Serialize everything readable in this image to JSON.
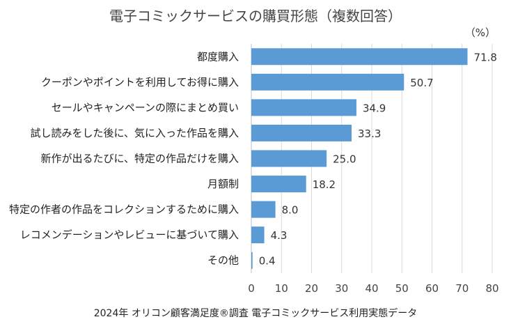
{
  "chart_data": {
    "type": "bar",
    "orientation": "horizontal",
    "title": "電子コミックサービスの購買形態（複数回答）",
    "unit": "（%）",
    "categories": [
      "都度購入",
      "クーポンやポイントを利用してお得に購入",
      "セールやキャンペーンの際にまとめ買い",
      "試し読みをした後に、気に入った作品を購入",
      "新作が出るたびに、特定の作品だけを購入",
      "月額制",
      "特定の作者の作品をコレクションするために購入",
      "レコメンデーションやレビューに基づいて購入",
      "その他"
    ],
    "values": [
      71.8,
      50.7,
      34.9,
      33.3,
      25.0,
      18.2,
      8.0,
      4.3,
      0.4
    ],
    "value_labels": [
      "71.8",
      "50.7",
      "34.9",
      "33.3",
      "25.0",
      "18.2",
      "8.0",
      "4.3",
      "0.4"
    ],
    "xlim": [
      0,
      80
    ],
    "xticks": [
      0,
      10,
      20,
      30,
      40,
      50,
      60,
      70,
      80
    ],
    "grid": true,
    "color": "#5b9bd5",
    "source": "2024年 オリコン顧客満足度®調査 電子コミックサービス利用実態データ"
  }
}
